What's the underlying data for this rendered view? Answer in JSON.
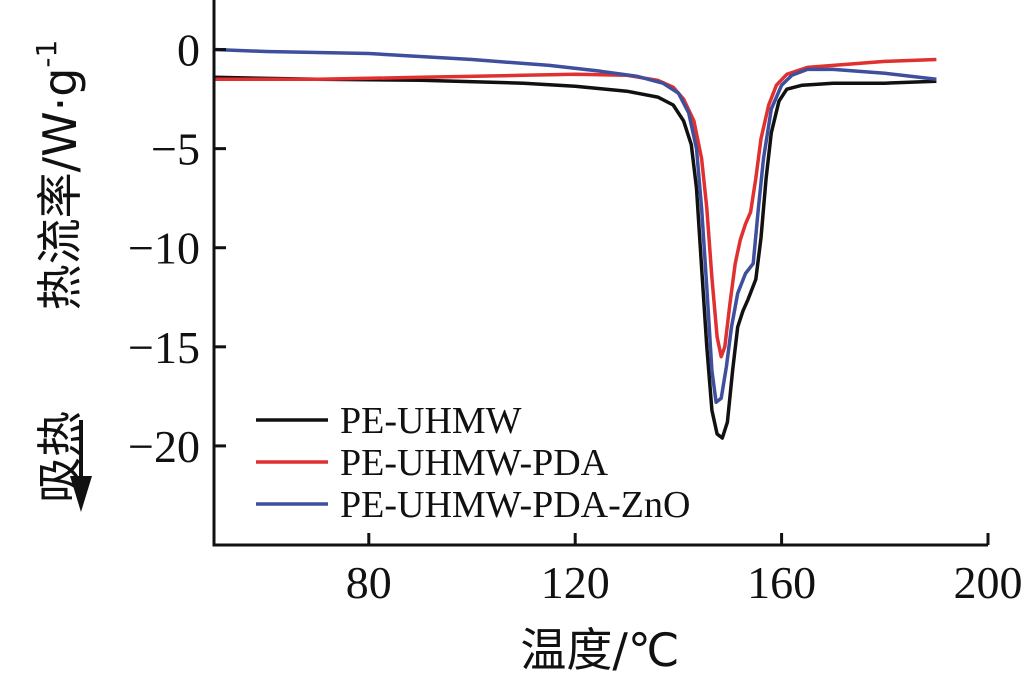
{
  "chart_data": {
    "type": "line",
    "title": "",
    "xlabel": "温度/℃",
    "ylabel": "热流率/W·g",
    "ylabel_superscript": "-1",
    "endotherm_label": "吸热",
    "xlim": [
      50,
      200
    ],
    "ylim": [
      -25,
      2.5
    ],
    "x_ticks": [
      80,
      120,
      160,
      200
    ],
    "y_ticks": [
      0,
      -5,
      -10,
      -15,
      -20
    ],
    "y_tick_labels": [
      "0",
      "−5",
      "−10",
      "−15",
      "−20"
    ],
    "grid": false,
    "legend_position": "bottom-left",
    "series": [
      {
        "name": "PE-UHMW",
        "color": "#111111",
        "points": [
          [
            50,
            -1.4
          ],
          [
            70,
            -1.5
          ],
          [
            90,
            -1.55
          ],
          [
            110,
            -1.7
          ],
          [
            120,
            -1.85
          ],
          [
            130,
            -2.1
          ],
          [
            136,
            -2.4
          ],
          [
            139,
            -2.8
          ],
          [
            141,
            -3.6
          ],
          [
            142.5,
            -4.8
          ],
          [
            143.5,
            -7
          ],
          [
            144.5,
            -11
          ],
          [
            145.5,
            -15
          ],
          [
            146.5,
            -18.2
          ],
          [
            147.5,
            -19.4
          ],
          [
            148.5,
            -19.6
          ],
          [
            149.5,
            -18.8
          ],
          [
            150.5,
            -16.2
          ],
          [
            151.5,
            -14
          ],
          [
            152.5,
            -13.2
          ],
          [
            153.5,
            -12.6
          ],
          [
            155,
            -11.6
          ],
          [
            156,
            -9.5
          ],
          [
            157,
            -6.5
          ],
          [
            158,
            -4.2
          ],
          [
            159.5,
            -2.6
          ],
          [
            161,
            -2.0
          ],
          [
            164,
            -1.8
          ],
          [
            170,
            -1.7
          ],
          [
            180,
            -1.7
          ],
          [
            190,
            -1.6
          ]
        ]
      },
      {
        "name": "PE-UHMW-PDA",
        "color": "#e03030",
        "points": [
          [
            50,
            -1.5
          ],
          [
            70,
            -1.5
          ],
          [
            90,
            -1.4
          ],
          [
            110,
            -1.3
          ],
          [
            120,
            -1.25
          ],
          [
            130,
            -1.3
          ],
          [
            136,
            -1.55
          ],
          [
            139,
            -1.9
          ],
          [
            141,
            -2.5
          ],
          [
            143,
            -3.6
          ],
          [
            144.5,
            -5.5
          ],
          [
            145.5,
            -8
          ],
          [
            146.5,
            -11.5
          ],
          [
            147.5,
            -14.5
          ],
          [
            148.3,
            -15.5
          ],
          [
            149,
            -15.0
          ],
          [
            150,
            -12.8
          ],
          [
            151,
            -10.8
          ],
          [
            152,
            -9.6
          ],
          [
            153,
            -8.8
          ],
          [
            154,
            -8.2
          ],
          [
            155,
            -6.5
          ],
          [
            156,
            -4.5
          ],
          [
            157.5,
            -2.8
          ],
          [
            159,
            -1.8
          ],
          [
            161,
            -1.25
          ],
          [
            165,
            -0.9
          ],
          [
            170,
            -0.8
          ],
          [
            180,
            -0.6
          ],
          [
            190,
            -0.5
          ]
        ]
      },
      {
        "name": "PE-UHMW-PDA-ZnO",
        "color": "#3e4f9e",
        "points": [
          [
            50,
            0.0
          ],
          [
            60,
            -0.1
          ],
          [
            80,
            -0.2
          ],
          [
            100,
            -0.5
          ],
          [
            115,
            -0.8
          ],
          [
            125,
            -1.1
          ],
          [
            132,
            -1.35
          ],
          [
            137,
            -1.7
          ],
          [
            140,
            -2.2
          ],
          [
            142,
            -3.2
          ],
          [
            143.5,
            -5
          ],
          [
            144.5,
            -8
          ],
          [
            145.5,
            -12
          ],
          [
            146.5,
            -16.2
          ],
          [
            147.3,
            -17.8
          ],
          [
            148.3,
            -17.6
          ],
          [
            149.3,
            -16
          ],
          [
            150.3,
            -14
          ],
          [
            151.5,
            -12.3
          ],
          [
            153,
            -11.3
          ],
          [
            154.5,
            -10.8
          ],
          [
            155.5,
            -8
          ],
          [
            156.5,
            -5.5
          ],
          [
            158,
            -3.0
          ],
          [
            160,
            -1.8
          ],
          [
            162,
            -1.3
          ],
          [
            165,
            -1.0
          ],
          [
            170,
            -1.0
          ],
          [
            180,
            -1.2
          ],
          [
            190,
            -1.5
          ]
        ]
      }
    ]
  }
}
